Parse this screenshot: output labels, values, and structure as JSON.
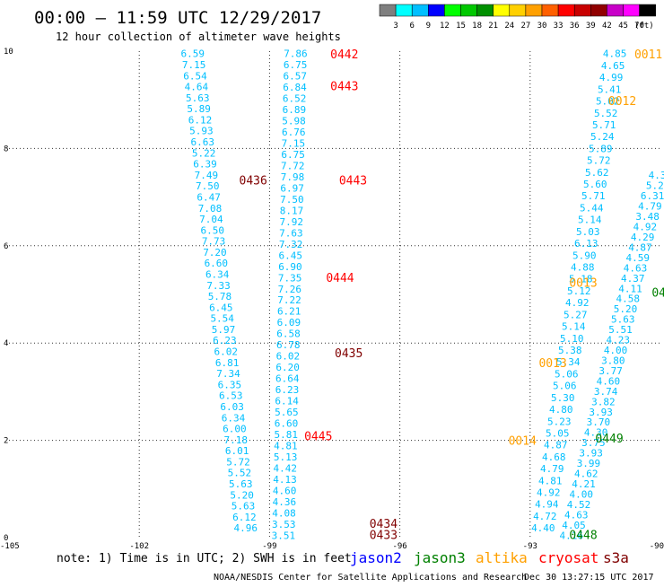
{
  "header": {
    "title": "00:00 – 11:59 UTC 12/29/2017",
    "subtitle": "12 hour collection of altimeter wave heights"
  },
  "colorbar": {
    "unit": "(ft)",
    "colors": [
      "#7f7f7f",
      "#00ffff",
      "#00bfff",
      "#0000ff",
      "#00ff00",
      "#00c800",
      "#009000",
      "#ffff00",
      "#ffd000",
      "#ffa000",
      "#ff6000",
      "#ff0000",
      "#c80000",
      "#900000",
      "#c800c8",
      "#ff00ff",
      "#000000"
    ],
    "labels": [
      "3",
      "6",
      "9",
      "12",
      "15",
      "18",
      "21",
      "24",
      "27",
      "30",
      "33",
      "36",
      "39",
      "42",
      "45",
      "70"
    ]
  },
  "footer": {
    "note": "note:  1) Time is in UTC;  2) SWH is in feet",
    "satellites": [
      {
        "name": "jason2",
        "color": "#0000ff"
      },
      {
        "name": "jason3",
        "color": "#008000"
      },
      {
        "name": "altika",
        "color": "#ffa000"
      },
      {
        "name": "cryosat",
        "color": "#ff0000"
      },
      {
        "name": "s3a",
        "color": "#800000"
      }
    ],
    "credit": "NOAA/NESDIS Center for Satellite Applications and Research",
    "timestamp": "Dec 30 13:27:15 UTC 2017"
  },
  "chart_data": {
    "type": "scatter",
    "title": "00:00 – 11:59 UTC 12/29/2017",
    "subtitle": "12 hour collection of altimeter wave heights",
    "xlim": [
      -105,
      -90
    ],
    "ylim": [
      0,
      10
    ],
    "x_ticks": [
      {
        "v": -105,
        "label": "-105"
      },
      {
        "v": -102,
        "label": "-102"
      },
      {
        "v": -99,
        "label": "-99"
      },
      {
        "v": -96,
        "label": "-96"
      },
      {
        "v": -93,
        "label": "-93"
      },
      {
        "v": -90,
        "label": "-90"
      }
    ],
    "y_ticks": [
      {
        "v": 0,
        "label": "0"
      },
      {
        "v": 2,
        "label": "2"
      },
      {
        "v": 4,
        "label": "4"
      },
      {
        "v": 6,
        "label": "6"
      },
      {
        "v": 8,
        "label": "8"
      },
      {
        "v": 10,
        "label": "10"
      }
    ],
    "grid": true,
    "track_color": "#00bfff",
    "tracks": [
      {
        "x0": -100.77,
        "y0": 9.95,
        "x1": -99.55,
        "y1": 0.2,
        "values": [
          "6.59",
          "7.15",
          "6.54",
          "4.64",
          "5.63",
          "5.89",
          "6.12",
          "5.93",
          "6.63",
          "5.22",
          "6.39",
          "7.49",
          "7.50",
          "6.47",
          "7.08",
          "7.04",
          "6.50",
          "7.73",
          "7.20",
          "6.60",
          "6.34",
          "7.33",
          "5.78",
          "6.45",
          "5.54",
          "5.97",
          "6.23",
          "6.02",
          "6.81",
          "7.34",
          "6.35",
          "6.53",
          "6.03",
          "6.34",
          "6.00",
          "7.18",
          "6.01",
          "5.72",
          "5.52",
          "5.63",
          "5.20",
          "5.63",
          "6.12",
          "4.96"
        ]
      },
      {
        "x0": -98.4,
        "y0": 9.95,
        "x1": -98.68,
        "y1": 0.05,
        "values": [
          "7.86",
          "6.75",
          "6.57",
          "6.84",
          "6.52",
          "6.89",
          "5.98",
          "6.76",
          "7.15",
          "6.75",
          "7.72",
          "7.98",
          "6.97",
          "7.50",
          "8.17",
          "7.92",
          "7.63",
          "7.32",
          "6.45",
          "6.90",
          "7.35",
          "7.26",
          "7.22",
          "6.21",
          "6.09",
          "6.58",
          "6.78",
          "6.02",
          "6.20",
          "6.64",
          "6.23",
          "6.14",
          "5.65",
          "6.60",
          "5.81",
          "4.81",
          "5.13",
          "4.42",
          "4.13",
          "4.60",
          "4.36",
          "4.08",
          "3.53",
          "3.51"
        ]
      },
      {
        "x0": -91.05,
        "y0": 9.95,
        "x1": -92.7,
        "y1": 0.2,
        "values": [
          "4.85",
          "4.65",
          "4.99",
          "5.41",
          "5.02",
          "5.52",
          "5.71",
          "5.24",
          "5.89",
          "5.72",
          "5.62",
          "5.60",
          "5.71",
          "5.44",
          "5.14",
          "5.03",
          "6.13",
          "5.90",
          "4.88",
          "5.18",
          "5.12",
          "4.92",
          "5.27",
          "5.14",
          "5.10",
          "5.38",
          "5.34",
          "5.06",
          "5.06",
          "5.30",
          "4.80",
          "5.23",
          "5.05",
          "4.87",
          "4.68",
          "4.79",
          "4.81",
          "4.92",
          "4.94",
          "4.72",
          "4.40"
        ]
      },
      {
        "x0": -90.07,
        "y0": 7.45,
        "x1": -92.05,
        "y1": 0.05,
        "values": [
          "4.3",
          "5.2",
          "6.31",
          "4.79",
          "3.48",
          "4.92",
          "4.29",
          "4.87",
          "4.59",
          "4.63",
          "4.37",
          "4.11",
          "4.58",
          "5.20",
          "5.63",
          "5.51",
          "4.23",
          "4.00",
          "3.80",
          "3.77",
          "4.60",
          "3.74",
          "3.82",
          "3.93",
          "3.70",
          "4.30",
          "3.75",
          "3.93",
          "3.99",
          "4.62",
          "4.21",
          "4.00",
          "4.52",
          "4.63",
          "4.05",
          "4.16"
        ]
      }
    ],
    "time_labels": [
      {
        "text": "0442",
        "x": -97.6,
        "y": 9.93,
        "color": "#ff0000"
      },
      {
        "text": "0443",
        "x": -97.6,
        "y": 9.27,
        "color": "#ff0000"
      },
      {
        "text": "0436",
        "x": -99.7,
        "y": 7.33,
        "color": "#800000"
      },
      {
        "text": "0443",
        "x": -97.4,
        "y": 7.33,
        "color": "#ff0000"
      },
      {
        "text": "0444",
        "x": -97.7,
        "y": 5.33,
        "color": "#ff0000"
      },
      {
        "text": "0435",
        "x": -97.5,
        "y": 3.78,
        "color": "#800000"
      },
      {
        "text": "0445",
        "x": -98.2,
        "y": 2.08,
        "color": "#ff0000"
      },
      {
        "text": "0434",
        "x": -96.7,
        "y": 0.28,
        "color": "#800000"
      },
      {
        "text": "0433",
        "x": -96.7,
        "y": 0.05,
        "color": "#800000"
      },
      {
        "text": "0011",
        "x": -90.6,
        "y": 9.93,
        "color": "#ffa000"
      },
      {
        "text": "0012",
        "x": -91.2,
        "y": 8.97,
        "color": "#ffa000"
      },
      {
        "text": "0013",
        "x": -92.1,
        "y": 5.23,
        "color": "#ffa000"
      },
      {
        "text": "0013",
        "x": -92.8,
        "y": 3.58,
        "color": "#ffa000"
      },
      {
        "text": "0014",
        "x": -93.5,
        "y": 1.98,
        "color": "#ffa000"
      },
      {
        "text": "0449",
        "x": -91.5,
        "y": 2.03,
        "color": "#008000"
      },
      {
        "text": "0448",
        "x": -92.1,
        "y": 0.05,
        "color": "#008000"
      },
      {
        "text": "04",
        "x": -90.2,
        "y": 5.03,
        "color": "#008000"
      }
    ]
  }
}
